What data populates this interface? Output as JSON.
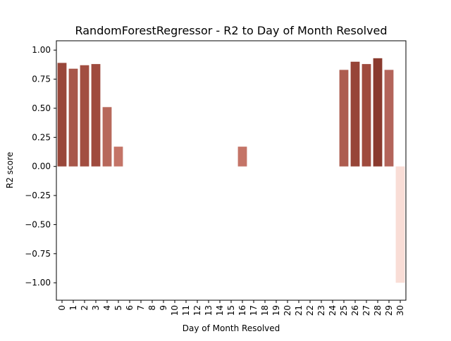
{
  "chart_data": {
    "type": "bar",
    "title": "RandomForestRegressor - R2 to Day of Month Resolved",
    "xlabel": "Day of Month Resolved",
    "ylabel": "R2 score",
    "categories": [
      "0",
      "1",
      "2",
      "3",
      "4",
      "5",
      "6",
      "7",
      "8",
      "9",
      "10",
      "11",
      "12",
      "13",
      "14",
      "15",
      "16",
      "17",
      "18",
      "19",
      "20",
      "21",
      "22",
      "23",
      "24",
      "25",
      "26",
      "27",
      "28",
      "29",
      "30"
    ],
    "values": [
      0.89,
      0.84,
      0.87,
      0.88,
      0.51,
      0.17,
      0,
      0,
      0,
      0,
      0,
      0,
      0,
      0,
      0,
      0,
      0.17,
      0,
      0,
      0,
      0,
      0,
      0,
      0,
      0,
      0.83,
      0.9,
      0.88,
      0.93,
      0.83,
      -1.0
    ],
    "bar_colors": [
      "#99473a",
      "#a8574a",
      "#a24e41",
      "#9f4b3e",
      "#b7685b",
      "#c47467",
      "#ffffff",
      "#ffffff",
      "#ffffff",
      "#ffffff",
      "#ffffff",
      "#ffffff",
      "#ffffff",
      "#ffffff",
      "#ffffff",
      "#ffffff",
      "#c47467",
      "#ffffff",
      "#ffffff",
      "#ffffff",
      "#ffffff",
      "#ffffff",
      "#ffffff",
      "#ffffff",
      "#ffffff",
      "#ad5c4f",
      "#974538",
      "#9f4b3e",
      "#8a3a2e",
      "#b3645a",
      "#f9ddd6"
    ],
    "ylim": [
      -1.15,
      1.08
    ],
    "yticks": [
      -1.0,
      -0.75,
      -0.5,
      -0.25,
      0.0,
      0.25,
      0.5,
      0.75,
      1.0
    ],
    "ytick_labels": [
      "−1.00",
      "−0.75",
      "−0.50",
      "−0.25",
      "0.00",
      "0.25",
      "0.50",
      "0.75",
      "1.00"
    ],
    "grid": false,
    "legend": "none"
  }
}
